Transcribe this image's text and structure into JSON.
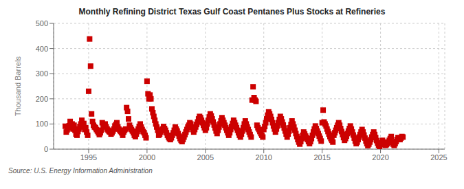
{
  "chart_data": {
    "type": "scatter",
    "title": "Monthly Refining District Texas Gulf Coast Pentanes Plus Stocks at Refineries",
    "y_label": "Thousand Barrels",
    "annotations": [
      "Source: U.S. Energy Information Administration"
    ],
    "color": "#cc0000",
    "marker": "square",
    "grid": true,
    "xlim": [
      1992.0,
      2025.5
    ],
    "ylim": [
      0,
      500
    ],
    "xticks": [
      1995,
      2000,
      2005,
      2010,
      2015,
      2020,
      2025
    ],
    "yticks": [
      0,
      100,
      200,
      300,
      400,
      500
    ],
    "x": [
      1993.0,
      1993.083,
      1993.167,
      1993.25,
      1993.333,
      1993.417,
      1993.5,
      1993.583,
      1993.667,
      1993.75,
      1993.833,
      1993.917,
      1994.0,
      1994.083,
      1994.167,
      1994.25,
      1994.333,
      1994.417,
      1994.5,
      1994.583,
      1994.667,
      1994.75,
      1994.833,
      1994.917,
      1995.0,
      1995.083,
      1995.167,
      1995.25,
      1995.333,
      1995.417,
      1995.5,
      1995.583,
      1995.667,
      1995.75,
      1995.833,
      1995.917,
      1996.0,
      1996.083,
      1996.167,
      1996.25,
      1996.333,
      1996.417,
      1996.5,
      1996.583,
      1996.667,
      1996.75,
      1996.833,
      1996.917,
      1997.0,
      1997.083,
      1997.167,
      1997.25,
      1997.333,
      1997.417,
      1997.5,
      1997.583,
      1997.667,
      1997.75,
      1997.833,
      1997.917,
      1998.0,
      1998.083,
      1998.167,
      1998.25,
      1998.333,
      1998.417,
      1998.5,
      1998.583,
      1998.667,
      1998.75,
      1998.833,
      1998.917,
      1999.0,
      1999.083,
      1999.167,
      1999.25,
      1999.333,
      1999.417,
      1999.5,
      1999.583,
      1999.667,
      1999.75,
      1999.833,
      1999.917,
      2000.0,
      2000.083,
      2000.167,
      2000.25,
      2000.333,
      2000.417,
      2000.5,
      2000.583,
      2000.667,
      2000.75,
      2000.833,
      2000.917,
      2001.0,
      2001.083,
      2001.167,
      2001.25,
      2001.333,
      2001.417,
      2001.5,
      2001.583,
      2001.667,
      2001.75,
      2001.833,
      2001.917,
      2002.0,
      2002.083,
      2002.167,
      2002.25,
      2002.333,
      2002.417,
      2002.5,
      2002.583,
      2002.667,
      2002.75,
      2002.833,
      2002.917,
      2003.0,
      2003.083,
      2003.167,
      2003.25,
      2003.333,
      2003.417,
      2003.5,
      2003.583,
      2003.667,
      2003.75,
      2003.833,
      2003.917,
      2004.0,
      2004.083,
      2004.167,
      2004.25,
      2004.333,
      2004.417,
      2004.5,
      2004.583,
      2004.667,
      2004.75,
      2004.833,
      2004.917,
      2005.0,
      2005.083,
      2005.167,
      2005.25,
      2005.333,
      2005.417,
      2005.5,
      2005.583,
      2005.667,
      2005.75,
      2005.833,
      2005.917,
      2006.0,
      2006.083,
      2006.167,
      2006.25,
      2006.333,
      2006.417,
      2006.5,
      2006.583,
      2006.667,
      2006.75,
      2006.833,
      2006.917,
      2007.0,
      2007.083,
      2007.167,
      2007.25,
      2007.333,
      2007.417,
      2007.5,
      2007.583,
      2007.667,
      2007.75,
      2007.833,
      2007.917,
      2008.0,
      2008.083,
      2008.167,
      2008.25,
      2008.333,
      2008.417,
      2008.5,
      2008.583,
      2008.667,
      2008.75,
      2008.833,
      2008.917,
      2009.0,
      2009.083,
      2009.167,
      2009.25,
      2009.333,
      2009.417,
      2009.5,
      2009.583,
      2009.667,
      2009.75,
      2009.833,
      2009.917,
      2010.0,
      2010.083,
      2010.167,
      2010.25,
      2010.333,
      2010.417,
      2010.5,
      2010.583,
      2010.667,
      2010.75,
      2010.833,
      2010.917,
      2011.0,
      2011.083,
      2011.167,
      2011.25,
      2011.333,
      2011.417,
      2011.5,
      2011.583,
      2011.667,
      2011.75,
      2011.833,
      2011.917,
      2012.0,
      2012.083,
      2012.167,
      2012.25,
      2012.333,
      2012.417,
      2012.5,
      2012.583,
      2012.667,
      2012.75,
      2012.833,
      2012.917,
      2013.0,
      2013.083,
      2013.167,
      2013.25,
      2013.333,
      2013.417,
      2013.5,
      2013.583,
      2013.667,
      2013.75,
      2013.833,
      2013.917,
      2014.0,
      2014.083,
      2014.167,
      2014.25,
      2014.333,
      2014.417,
      2014.5,
      2014.583,
      2014.667,
      2014.75,
      2014.833,
      2014.917,
      2015.0,
      2015.083,
      2015.167,
      2015.25,
      2015.333,
      2015.417,
      2015.5,
      2015.583,
      2015.667,
      2015.75,
      2015.833,
      2015.917,
      2016.0,
      2016.083,
      2016.167,
      2016.25,
      2016.333,
      2016.417,
      2016.5,
      2016.583,
      2016.667,
      2016.75,
      2016.833,
      2016.917,
      2017.0,
      2017.083,
      2017.167,
      2017.25,
      2017.333,
      2017.417,
      2017.5,
      2017.583,
      2017.667,
      2017.75,
      2017.833,
      2017.917,
      2018.0,
      2018.083,
      2018.167,
      2018.25,
      2018.333,
      2018.417,
      2018.5,
      2018.583,
      2018.667,
      2018.75,
      2018.833,
      2018.917,
      2019.0,
      2019.083,
      2019.167,
      2019.25,
      2019.333,
      2019.417,
      2019.5,
      2019.583,
      2019.667,
      2019.75,
      2019.833,
      2019.917,
      2020.0,
      2020.083,
      2020.167,
      2020.25,
      2020.333,
      2020.417,
      2020.5,
      2020.583,
      2020.667,
      2020.75,
      2020.833,
      2020.917,
      2021.0,
      2021.083,
      2021.167,
      2021.25,
      2021.333,
      2021.417,
      2021.5,
      2021.583,
      2021.667,
      2021.75,
      2021.833,
      2021.917
    ],
    "values": [
      91,
      68,
      77,
      85,
      93,
      110,
      95,
      100,
      80,
      95,
      75,
      60,
      55,
      70,
      80,
      90,
      100,
      115,
      88,
      102,
      78,
      85,
      68,
      55,
      230,
      438,
      330,
      140,
      110,
      95,
      88,
      85,
      78,
      72,
      65,
      58,
      65,
      75,
      105,
      90,
      95,
      100,
      88,
      80,
      75,
      70,
      68,
      60,
      65,
      72,
      80,
      92,
      98,
      105,
      88,
      80,
      75,
      70,
      65,
      55,
      68,
      75,
      80,
      165,
      150,
      120,
      95,
      85,
      78,
      72,
      65,
      55,
      50,
      60,
      70,
      80,
      90,
      100,
      88,
      78,
      70,
      65,
      55,
      45,
      270,
      220,
      200,
      215,
      200,
      160,
      145,
      130,
      115,
      100,
      88,
      75,
      55,
      60,
      68,
      75,
      80,
      90,
      82,
      75,
      65,
      55,
      48,
      42,
      38,
      45,
      55,
      65,
      75,
      88,
      80,
      72,
      62,
      52,
      42,
      35,
      30,
      38,
      48,
      58,
      68,
      78,
      88,
      95,
      105,
      100,
      88,
      78,
      68,
      78,
      88,
      98,
      108,
      120,
      130,
      125,
      115,
      105,
      95,
      85,
      75,
      85,
      100,
      115,
      128,
      140,
      132,
      120,
      108,
      96,
      84,
      72,
      62,
      75,
      88,
      100,
      112,
      125,
      115,
      105,
      95,
      85,
      75,
      65,
      55,
      65,
      78,
      90,
      102,
      115,
      105,
      95,
      85,
      75,
      65,
      55,
      48,
      60,
      72,
      85,
      100,
      112,
      100,
      88,
      78,
      68,
      58,
      48,
      195,
      248,
      205,
      195,
      190,
      95,
      85,
      78,
      70,
      62,
      55,
      48,
      78,
      90,
      105,
      120,
      135,
      148,
      140,
      130,
      118,
      105,
      92,
      80,
      68,
      80,
      92,
      105,
      118,
      130,
      120,
      108,
      96,
      84,
      72,
      60,
      48,
      60,
      72,
      85,
      98,
      112,
      100,
      88,
      75,
      62,
      50,
      38,
      28,
      20,
      30,
      42,
      55,
      68,
      60,
      52,
      45,
      38,
      30,
      22,
      30,
      42,
      55,
      68,
      80,
      92,
      82,
      72,
      62,
      52,
      42,
      32,
      105,
      155,
      108,
      100,
      92,
      80,
      70,
      60,
      50,
      42,
      35,
      28,
      55,
      65,
      75,
      85,
      95,
      105,
      95,
      82,
      70,
      58,
      46,
      35,
      42,
      52,
      62,
      72,
      82,
      92,
      80,
      68,
      56,
      44,
      32,
      22,
      28,
      38,
      48,
      58,
      68,
      78,
      68,
      56,
      44,
      32,
      22,
      14,
      20,
      28,
      38,
      48,
      58,
      68,
      58,
      46,
      34,
      24,
      16,
      10,
      18,
      25,
      35,
      28,
      20,
      15,
      18,
      22,
      28,
      35,
      42,
      50,
      28,
      20,
      15,
      22,
      30,
      38,
      46,
      42,
      38,
      44,
      50,
      48
    ]
  }
}
